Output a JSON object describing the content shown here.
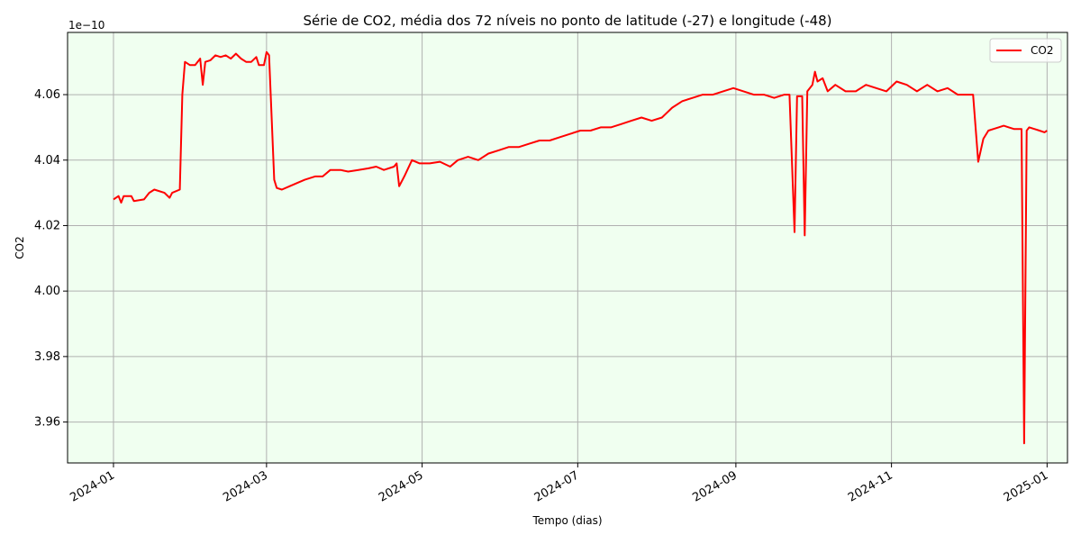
{
  "chart_data": {
    "type": "line",
    "title": "Série de CO2, média dos 72 níveis no ponto de latitude (-27) e longitude (-48)",
    "xlabel": "Tempo (dias)",
    "ylabel": "CO2",
    "y_scale_label": "1e−10",
    "y_scale": 1e-10,
    "xlim": [
      "2023-12-14",
      "2025-01-09"
    ],
    "ylim": [
      3.9475,
      4.079
    ],
    "x_ticks": [
      {
        "date": "2024-01-01",
        "label": "2024-01"
      },
      {
        "date": "2024-03-01",
        "label": "2024-03"
      },
      {
        "date": "2024-05-01",
        "label": "2024-05"
      },
      {
        "date": "2024-07-01",
        "label": "2024-07"
      },
      {
        "date": "2024-09-01",
        "label": "2024-09"
      },
      {
        "date": "2024-11-01",
        "label": "2024-11"
      },
      {
        "date": "2025-01-01",
        "label": "2025-01"
      }
    ],
    "y_ticks": [
      {
        "value": 3.96,
        "label": "3.96"
      },
      {
        "value": 3.98,
        "label": "3.98"
      },
      {
        "value": 4.0,
        "label": "4.00"
      },
      {
        "value": 4.02,
        "label": "4.02"
      },
      {
        "value": 4.04,
        "label": "4.04"
      },
      {
        "value": 4.06,
        "label": "4.06"
      }
    ],
    "grid": true,
    "legend_position": "top-right",
    "background_color": "#f0fff0",
    "series": [
      {
        "name": "CO2",
        "color": "#ff0000",
        "points": [
          [
            "2024-01-01",
            4.028
          ],
          [
            "2024-01-03",
            4.029
          ],
          [
            "2024-01-04",
            4.027
          ],
          [
            "2024-01-05",
            4.029
          ],
          [
            "2024-01-08",
            4.029
          ],
          [
            "2024-01-09",
            4.0275
          ],
          [
            "2024-01-13",
            4.028
          ],
          [
            "2024-01-15",
            4.03
          ],
          [
            "2024-01-17",
            4.031
          ],
          [
            "2024-01-21",
            4.03
          ],
          [
            "2024-01-23",
            4.0285
          ],
          [
            "2024-01-24",
            4.03
          ],
          [
            "2024-01-27",
            4.031
          ],
          [
            "2024-01-28",
            4.06
          ],
          [
            "2024-01-29",
            4.07
          ],
          [
            "2024-01-31",
            4.069
          ],
          [
            "2024-02-02",
            4.069
          ],
          [
            "2024-02-04",
            4.071
          ],
          [
            "2024-02-05",
            4.063
          ],
          [
            "2024-02-06",
            4.07
          ],
          [
            "2024-02-08",
            4.0705
          ],
          [
            "2024-02-10",
            4.072
          ],
          [
            "2024-02-12",
            4.0715
          ],
          [
            "2024-02-14",
            4.072
          ],
          [
            "2024-02-16",
            4.071
          ],
          [
            "2024-02-18",
            4.0725
          ],
          [
            "2024-02-20",
            4.071
          ],
          [
            "2024-02-22",
            4.07
          ],
          [
            "2024-02-24",
            4.07
          ],
          [
            "2024-02-26",
            4.0715
          ],
          [
            "2024-02-27",
            4.069
          ],
          [
            "2024-02-29",
            4.069
          ],
          [
            "2024-03-01",
            4.073
          ],
          [
            "2024-03-02",
            4.072
          ],
          [
            "2024-03-04",
            4.034
          ],
          [
            "2024-03-05",
            4.0315
          ],
          [
            "2024-03-07",
            4.031
          ],
          [
            "2024-03-10",
            4.032
          ],
          [
            "2024-03-13",
            4.033
          ],
          [
            "2024-03-16",
            4.034
          ],
          [
            "2024-03-20",
            4.035
          ],
          [
            "2024-03-23",
            4.035
          ],
          [
            "2024-03-26",
            4.037
          ],
          [
            "2024-03-30",
            4.037
          ],
          [
            "2024-04-02",
            4.0365
          ],
          [
            "2024-04-06",
            4.037
          ],
          [
            "2024-04-10",
            4.0375
          ],
          [
            "2024-04-13",
            4.038
          ],
          [
            "2024-04-16",
            4.037
          ],
          [
            "2024-04-20",
            4.038
          ],
          [
            "2024-04-21",
            4.039
          ],
          [
            "2024-04-22",
            4.032
          ],
          [
            "2024-04-24",
            4.035
          ],
          [
            "2024-04-27",
            4.04
          ],
          [
            "2024-04-30",
            4.039
          ],
          [
            "2024-05-04",
            4.039
          ],
          [
            "2024-05-08",
            4.0395
          ],
          [
            "2024-05-12",
            4.038
          ],
          [
            "2024-05-15",
            4.04
          ],
          [
            "2024-05-19",
            4.041
          ],
          [
            "2024-05-23",
            4.04
          ],
          [
            "2024-05-27",
            4.042
          ],
          [
            "2024-05-31",
            4.043
          ],
          [
            "2024-06-04",
            4.044
          ],
          [
            "2024-06-08",
            4.044
          ],
          [
            "2024-06-12",
            4.045
          ],
          [
            "2024-06-16",
            4.046
          ],
          [
            "2024-06-20",
            4.046
          ],
          [
            "2024-06-24",
            4.047
          ],
          [
            "2024-06-28",
            4.048
          ],
          [
            "2024-07-02",
            4.049
          ],
          [
            "2024-07-06",
            4.049
          ],
          [
            "2024-07-10",
            4.05
          ],
          [
            "2024-07-14",
            4.05
          ],
          [
            "2024-07-18",
            4.051
          ],
          [
            "2024-07-22",
            4.052
          ],
          [
            "2024-07-26",
            4.053
          ],
          [
            "2024-07-30",
            4.052
          ],
          [
            "2024-08-03",
            4.053
          ],
          [
            "2024-08-07",
            4.056
          ],
          [
            "2024-08-11",
            4.058
          ],
          [
            "2024-08-15",
            4.059
          ],
          [
            "2024-08-19",
            4.06
          ],
          [
            "2024-08-23",
            4.06
          ],
          [
            "2024-08-27",
            4.061
          ],
          [
            "2024-08-31",
            4.062
          ],
          [
            "2024-09-04",
            4.061
          ],
          [
            "2024-09-08",
            4.06
          ],
          [
            "2024-09-12",
            4.06
          ],
          [
            "2024-09-16",
            4.059
          ],
          [
            "2024-09-20",
            4.06
          ],
          [
            "2024-09-22",
            4.06
          ],
          [
            "2024-09-24",
            4.018
          ],
          [
            "2024-09-25",
            4.0595
          ],
          [
            "2024-09-27",
            4.0595
          ],
          [
            "2024-09-28",
            4.017
          ],
          [
            "2024-09-29",
            4.061
          ],
          [
            "2024-10-01",
            4.063
          ],
          [
            "2024-10-02",
            4.067
          ],
          [
            "2024-10-03",
            4.064
          ],
          [
            "2024-10-05",
            4.065
          ],
          [
            "2024-10-07",
            4.061
          ],
          [
            "2024-10-10",
            4.063
          ],
          [
            "2024-10-14",
            4.061
          ],
          [
            "2024-10-18",
            4.061
          ],
          [
            "2024-10-22",
            4.063
          ],
          [
            "2024-10-26",
            4.062
          ],
          [
            "2024-10-30",
            4.061
          ],
          [
            "2024-11-03",
            4.064
          ],
          [
            "2024-11-07",
            4.063
          ],
          [
            "2024-11-11",
            4.061
          ],
          [
            "2024-11-15",
            4.063
          ],
          [
            "2024-11-19",
            4.061
          ],
          [
            "2024-11-23",
            4.062
          ],
          [
            "2024-11-27",
            4.06
          ],
          [
            "2024-12-01",
            4.06
          ],
          [
            "2024-12-03",
            4.06
          ],
          [
            "2024-12-05",
            4.0395
          ],
          [
            "2024-12-07",
            4.0465
          ],
          [
            "2024-12-09",
            4.049
          ],
          [
            "2024-12-11",
            4.0495
          ],
          [
            "2024-12-13",
            4.05
          ],
          [
            "2024-12-15",
            4.0505
          ],
          [
            "2024-12-17",
            4.05
          ],
          [
            "2024-12-19",
            4.0495
          ],
          [
            "2024-12-21",
            4.0495
          ],
          [
            "2024-12-22",
            4.0495
          ],
          [
            "2024-12-23",
            3.9535
          ],
          [
            "2024-12-24",
            4.049
          ],
          [
            "2024-12-25",
            4.05
          ],
          [
            "2024-12-27",
            4.0495
          ],
          [
            "2024-12-29",
            4.049
          ],
          [
            "2024-12-31",
            4.0485
          ],
          [
            "2025-01-01",
            4.049
          ]
        ]
      }
    ]
  }
}
